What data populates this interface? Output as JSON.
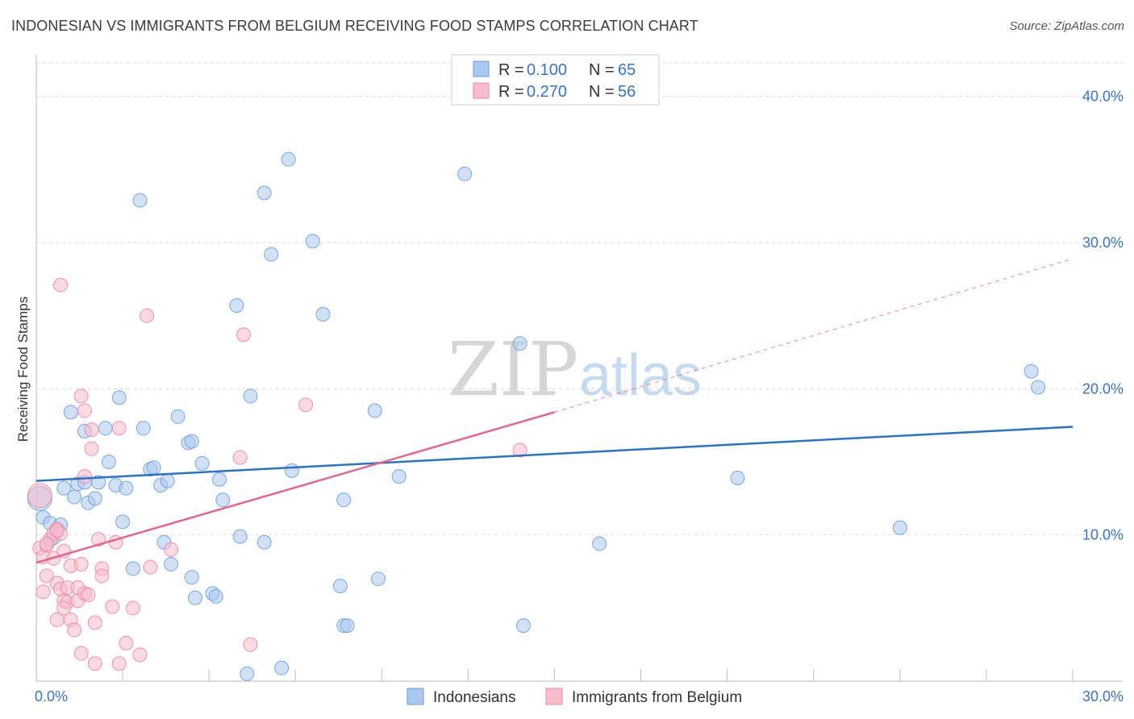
{
  "title": "INDONESIAN VS IMMIGRANTS FROM BELGIUM RECEIVING FOOD STAMPS CORRELATION CHART",
  "source": "Source: ZipAtlas.com",
  "watermark": {
    "zip": "ZIP",
    "atlas": "atlas"
  },
  "colors": {
    "blue_fill": "#a9c8ee",
    "blue_stroke": "#6f9fd8",
    "blue_line": "#2a72c8",
    "pink_fill": "#f7bccd",
    "pink_stroke": "#e88aa6",
    "pink_line": "#e2678f",
    "tick_text": "#3a73c4",
    "grid": "#d9d9d9"
  },
  "legend": {
    "rows": [
      {
        "r_label": "R = ",
        "r_value": "0.100",
        "n_label": "N = ",
        "n_value": "65",
        "color": "blue"
      },
      {
        "r_label": "R = ",
        "r_value": "0.270",
        "n_label": "N = ",
        "n_value": "56",
        "color": "pink"
      }
    ]
  },
  "chart_data": {
    "type": "scatter",
    "title": "INDONESIAN VS IMMIGRANTS FROM BELGIUM RECEIVING FOOD STAMPS CORRELATION CHART",
    "xlabel": "",
    "ylabel": "Receiving Food Stamps",
    "xlim": [
      0,
      30
    ],
    "ylim": [
      0,
      40
    ],
    "x_tick_labels": [
      "0.0%",
      "30.0%"
    ],
    "y_ticks": [
      10,
      20,
      30,
      40
    ],
    "y_tick_labels": [
      "10.0%",
      "20.0%",
      "30.0%",
      "40.0%"
    ],
    "grid": true,
    "legend_position": "top-center",
    "series": [
      {
        "name": "Indonesians",
        "color": "blue",
        "r": 0.1,
        "n": 65,
        "trend": {
          "x0": 0,
          "y0": 13.7,
          "x1": 30,
          "y1": 17.4
        },
        "points": [
          [
            0.1,
            12.5
          ],
          [
            0.2,
            11.2
          ],
          [
            0.4,
            10.8
          ],
          [
            0.7,
            10.7
          ],
          [
            0.5,
            9.8
          ],
          [
            0.8,
            13.2
          ],
          [
            1.1,
            12.6
          ],
          [
            1.2,
            13.5
          ],
          [
            1.4,
            13.6
          ],
          [
            1.5,
            12.2
          ],
          [
            1.7,
            12.5
          ],
          [
            1.8,
            13.6
          ],
          [
            2.1,
            15.0
          ],
          [
            2.3,
            13.4
          ],
          [
            2.6,
            13.2
          ],
          [
            2.5,
            10.9
          ],
          [
            1.0,
            18.4
          ],
          [
            1.4,
            17.1
          ],
          [
            2.0,
            17.3
          ],
          [
            2.4,
            19.4
          ],
          [
            3.1,
            17.3
          ],
          [
            3.6,
            13.4
          ],
          [
            3.8,
            13.7
          ],
          [
            3.7,
            9.5
          ],
          [
            3.9,
            8.0
          ],
          [
            2.8,
            7.7
          ],
          [
            4.1,
            18.1
          ],
          [
            4.4,
            16.3
          ],
          [
            4.5,
            16.4
          ],
          [
            4.8,
            14.9
          ],
          [
            4.5,
            7.1
          ],
          [
            4.6,
            5.7
          ],
          [
            5.1,
            6.0
          ],
          [
            5.2,
            5.8
          ],
          [
            5.3,
            13.8
          ],
          [
            5.4,
            12.4
          ],
          [
            5.8,
            25.7
          ],
          [
            5.9,
            9.9
          ],
          [
            6.1,
            0.5
          ],
          [
            6.2,
            19.5
          ],
          [
            6.6,
            33.4
          ],
          [
            6.8,
            29.2
          ],
          [
            6.6,
            9.5
          ],
          [
            7.3,
            35.7
          ],
          [
            7.1,
            0.9
          ],
          [
            7.4,
            14.4
          ],
          [
            8.0,
            30.1
          ],
          [
            8.3,
            25.1
          ],
          [
            8.8,
            6.5
          ],
          [
            8.9,
            12.4
          ],
          [
            8.9,
            3.8
          ],
          [
            9.0,
            3.8
          ],
          [
            9.8,
            18.5
          ],
          [
            9.9,
            7.0
          ],
          [
            10.5,
            14.0
          ],
          [
            3.0,
            32.9
          ],
          [
            3.3,
            14.5
          ],
          [
            3.4,
            14.6
          ],
          [
            12.4,
            34.7
          ],
          [
            14.0,
            23.1
          ],
          [
            14.1,
            3.8
          ],
          [
            16.3,
            9.4
          ],
          [
            20.3,
            13.9
          ],
          [
            25.0,
            10.5
          ],
          [
            28.8,
            21.2
          ],
          [
            29.0,
            20.1
          ]
        ]
      },
      {
        "name": "Immigrants from Belgium",
        "color": "pink",
        "r": 0.27,
        "n": 56,
        "trend": {
          "x0": 0,
          "y0": 8.1,
          "x1": 15,
          "y1": 18.4
        },
        "trend_extended": {
          "x0": 15,
          "y0": 18.4,
          "x1": 30,
          "y1": 28.9
        },
        "points": [
          [
            0.1,
            12.7
          ],
          [
            0.1,
            9.1
          ],
          [
            0.2,
            8.5
          ],
          [
            0.3,
            9.3
          ],
          [
            0.4,
            9.7
          ],
          [
            0.5,
            10.1
          ],
          [
            0.3,
            7.2
          ],
          [
            0.2,
            6.1
          ],
          [
            0.5,
            8.4
          ],
          [
            0.6,
            10.4
          ],
          [
            0.7,
            10.1
          ],
          [
            0.6,
            6.7
          ],
          [
            0.6,
            4.2
          ],
          [
            0.7,
            6.3
          ],
          [
            0.8,
            5.5
          ],
          [
            0.8,
            8.9
          ],
          [
            0.9,
            6.4
          ],
          [
            0.9,
            5.4
          ],
          [
            1.0,
            4.2
          ],
          [
            0.8,
            5.0
          ],
          [
            1.0,
            7.9
          ],
          [
            1.1,
            3.5
          ],
          [
            1.2,
            6.4
          ],
          [
            1.2,
            5.5
          ],
          [
            1.3,
            8.0
          ],
          [
            1.4,
            14.0
          ],
          [
            1.4,
            6.0
          ],
          [
            1.5,
            5.9
          ],
          [
            1.6,
            15.9
          ],
          [
            1.6,
            17.2
          ],
          [
            1.7,
            4.0
          ],
          [
            1.8,
            9.7
          ],
          [
            1.9,
            7.7
          ],
          [
            1.9,
            7.2
          ],
          [
            2.2,
            5.1
          ],
          [
            2.3,
            9.5
          ],
          [
            2.4,
            17.3
          ],
          [
            2.6,
            2.6
          ],
          [
            2.8,
            5.0
          ],
          [
            3.0,
            1.8
          ],
          [
            3.2,
            25.0
          ],
          [
            3.3,
            7.8
          ],
          [
            3.9,
            9.0
          ],
          [
            5.9,
            15.3
          ],
          [
            6.0,
            23.7
          ],
          [
            6.2,
            2.5
          ],
          [
            7.8,
            18.9
          ],
          [
            14.0,
            15.8
          ],
          [
            0.7,
            27.1
          ],
          [
            1.3,
            19.5
          ],
          [
            1.4,
            18.5
          ],
          [
            1.3,
            1.9
          ],
          [
            1.7,
            1.2
          ],
          [
            2.4,
            1.2
          ],
          [
            0.3,
            9.4
          ],
          [
            0.6,
            10.3
          ]
        ]
      }
    ]
  },
  "bottom_legend": {
    "items": [
      {
        "label": "Indonesians",
        "color": "blue"
      },
      {
        "label": "Immigrants from Belgium",
        "color": "pink"
      }
    ]
  }
}
